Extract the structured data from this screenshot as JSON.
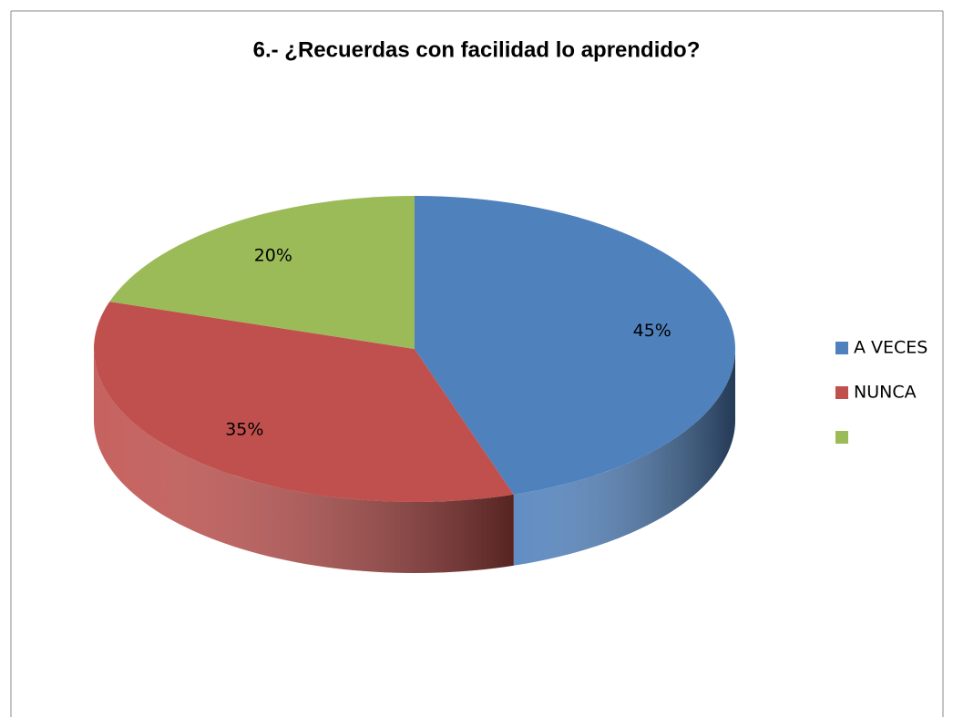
{
  "chart_data": {
    "type": "pie",
    "title": "6.- ¿Recuerdas con facilidad lo aprendido?",
    "categories": [
      "A VECES",
      "NUNCA",
      null
    ],
    "values": [
      45,
      35,
      20
    ],
    "value_labels": [
      "45%",
      "35%",
      "20%"
    ],
    "colors": [
      "#4f81bd",
      "#c0504d",
      "#9bbb59"
    ],
    "legend": "right"
  }
}
